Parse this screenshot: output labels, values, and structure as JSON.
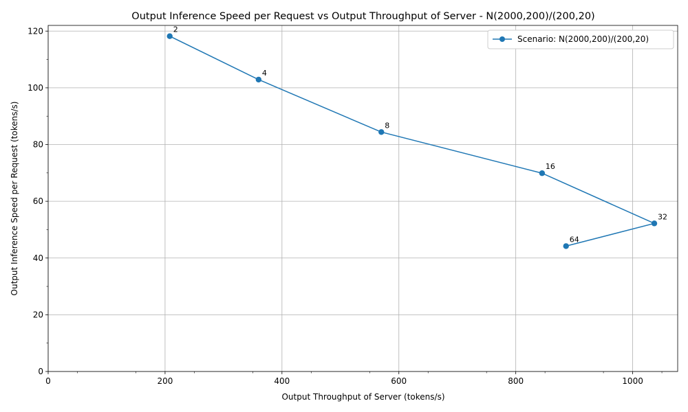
{
  "chart_data": {
    "type": "line",
    "title": "Output Inference Speed per Request vs Output Throughput of Server - N(2000,200)/(200,20)",
    "xlabel": "Output Throughput of Server (tokens/s)",
    "ylabel": "Output Inference Speed per Request (tokens/s)",
    "xlim": [
      0,
      1077
    ],
    "ylim": [
      0,
      122
    ],
    "x_ticks": [
      "0",
      "200",
      "400",
      "600",
      "800",
      "1000"
    ],
    "y_ticks": [
      "0",
      "20",
      "40",
      "60",
      "80",
      "100",
      "120"
    ],
    "grid": true,
    "legend_position": "top-right",
    "color": "#1f77b4",
    "series": [
      {
        "name": "Scenario: N(2000,200)/(200,20)",
        "x": [
          208,
          360,
          570,
          845,
          1037,
          886
        ],
        "y": [
          118.2,
          102.9,
          84.4,
          69.9,
          52.2,
          44.2
        ],
        "labels": [
          "2",
          "4",
          "8",
          "16",
          "32",
          "64"
        ]
      }
    ]
  }
}
